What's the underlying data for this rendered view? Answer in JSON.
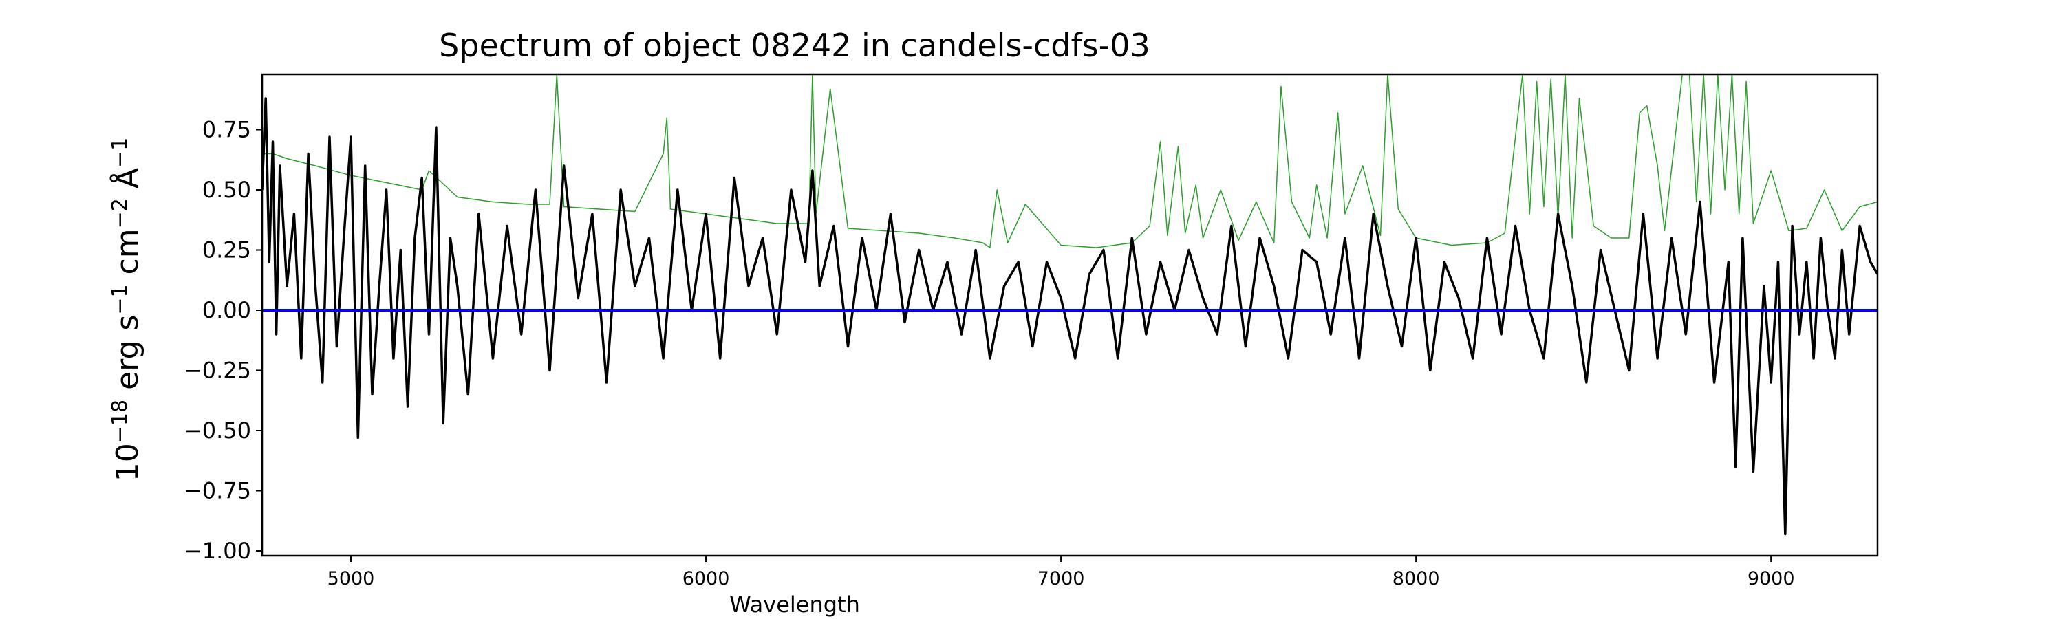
{
  "chart_data": {
    "type": "line",
    "title": "Spectrum of object 08242 in candels-cdfs-03",
    "xlabel": "Wavelength",
    "ylabel": {
      "base": "10",
      "exp": "−18",
      "unit_erg": "erg s",
      "exp_s": "−1",
      "unit_cm": "cm",
      "exp_cm": "−2",
      "unit_A": "Å",
      "exp_A": "−1"
    },
    "xlim": [
      4750,
      9300
    ],
    "ylim": [
      -1.02,
      0.98
    ],
    "x_ticks": [
      5000,
      6000,
      7000,
      8000,
      9000
    ],
    "x_tick_labels": [
      "5000",
      "6000",
      "7000",
      "8000",
      "9000"
    ],
    "y_ticks": [
      0.75,
      0.5,
      0.25,
      0.0,
      -0.25,
      -0.5,
      -0.75,
      -1.0
    ],
    "y_tick_labels": [
      "0.75",
      "0.50",
      "0.25",
      "0.00",
      "−0.25",
      "−0.50",
      "−0.75",
      "−1.00"
    ],
    "grid": false,
    "series": [
      {
        "color": "#2ca02c",
        "width": 1.5,
        "x": [
          4750,
          4780,
          4820,
          4900,
          5000,
          5100,
          5200,
          5220,
          5300,
          5400,
          5500,
          5560,
          5580,
          5600,
          5700,
          5800,
          5880,
          5890,
          5900,
          6000,
          6100,
          6200,
          6290,
          6300,
          6310,
          6350,
          6400,
          6500,
          6600,
          6700,
          6780,
          6800,
          6820,
          6850,
          6900,
          7000,
          7100,
          7200,
          7250,
          7280,
          7300,
          7330,
          7350,
          7380,
          7400,
          7450,
          7500,
          7550,
          7600,
          7620,
          7650,
          7700,
          7720,
          7750,
          7780,
          7800,
          7850,
          7900,
          7920,
          7950,
          8000,
          8100,
          8200,
          8250,
          8280,
          8300,
          8320,
          8340,
          8360,
          8380,
          8400,
          8420,
          8440,
          8460,
          8500,
          8550,
          8600,
          8630,
          8650,
          8680,
          8700,
          8750,
          8770,
          8790,
          8810,
          8830,
          8850,
          8870,
          8890,
          8910,
          8930,
          8950,
          9000,
          9050,
          9100,
          9150,
          9200,
          9250,
          9300
        ],
        "y": [
          0.65,
          0.65,
          0.63,
          0.6,
          0.56,
          0.53,
          0.5,
          0.58,
          0.47,
          0.45,
          0.44,
          0.44,
          0.98,
          0.43,
          0.42,
          0.41,
          0.65,
          0.8,
          0.42,
          0.4,
          0.38,
          0.36,
          0.36,
          0.98,
          0.4,
          0.92,
          0.34,
          0.33,
          0.32,
          0.3,
          0.28,
          0.26,
          0.5,
          0.28,
          0.44,
          0.27,
          0.26,
          0.28,
          0.35,
          0.7,
          0.31,
          0.68,
          0.32,
          0.52,
          0.3,
          0.5,
          0.29,
          0.45,
          0.28,
          0.93,
          0.45,
          0.3,
          0.52,
          0.3,
          0.82,
          0.4,
          0.6,
          0.31,
          0.98,
          0.42,
          0.3,
          0.27,
          0.28,
          0.32,
          0.72,
          0.98,
          0.4,
          0.95,
          0.43,
          0.96,
          0.38,
          0.98,
          0.3,
          0.88,
          0.35,
          0.3,
          0.3,
          0.82,
          0.85,
          0.6,
          0.33,
          0.98,
          0.98,
          0.45,
          0.98,
          0.4,
          0.98,
          0.5,
          0.98,
          0.4,
          0.95,
          0.36,
          0.58,
          0.33,
          0.34,
          0.5,
          0.33,
          0.43,
          0.45
        ]
      },
      {
        "color": "#000000",
        "width": 3.5,
        "x": [
          4750,
          4760,
          4770,
          4780,
          4790,
          4800,
          4820,
          4840,
          4860,
          4880,
          4900,
          4920,
          4940,
          4960,
          4980,
          5000,
          5020,
          5040,
          5060,
          5080,
          5100,
          5120,
          5140,
          5160,
          5180,
          5200,
          5220,
          5240,
          5260,
          5280,
          5300,
          5330,
          5360,
          5400,
          5440,
          5480,
          5520,
          5560,
          5600,
          5640,
          5680,
          5720,
          5760,
          5800,
          5840,
          5880,
          5920,
          5960,
          6000,
          6040,
          6080,
          6120,
          6160,
          6200,
          6240,
          6280,
          6300,
          6320,
          6360,
          6400,
          6440,
          6480,
          6520,
          6560,
          6600,
          6640,
          6680,
          6720,
          6760,
          6800,
          6840,
          6880,
          6920,
          6960,
          7000,
          7040,
          7080,
          7120,
          7160,
          7200,
          7240,
          7280,
          7320,
          7360,
          7400,
          7440,
          7480,
          7520,
          7560,
          7600,
          7640,
          7680,
          7720,
          7760,
          7800,
          7840,
          7880,
          7920,
          7960,
          8000,
          8040,
          8080,
          8120,
          8160,
          8200,
          8240,
          8280,
          8320,
          8360,
          8400,
          8440,
          8480,
          8520,
          8560,
          8600,
          8640,
          8680,
          8720,
          8760,
          8800,
          8840,
          8880,
          8900,
          8920,
          8950,
          8980,
          9000,
          9020,
          9040,
          9060,
          9080,
          9100,
          9120,
          9140,
          9160,
          9180,
          9200,
          9220,
          9250,
          9280,
          9300
        ],
        "y": [
          0.5,
          0.88,
          0.2,
          0.7,
          -0.1,
          0.6,
          0.1,
          0.4,
          -0.2,
          0.65,
          0.1,
          -0.3,
          0.72,
          -0.15,
          0.3,
          0.72,
          -0.53,
          0.6,
          -0.35,
          0.1,
          0.5,
          -0.2,
          0.25,
          -0.4,
          0.3,
          0.55,
          -0.1,
          0.76,
          -0.47,
          0.3,
          0.1,
          -0.35,
          0.4,
          -0.2,
          0.35,
          -0.1,
          0.5,
          -0.25,
          0.6,
          0.05,
          0.4,
          -0.3,
          0.5,
          0.1,
          0.3,
          -0.2,
          0.5,
          0.0,
          0.4,
          -0.2,
          0.55,
          0.1,
          0.3,
          -0.1,
          0.5,
          0.2,
          0.58,
          0.1,
          0.35,
          -0.15,
          0.3,
          0.0,
          0.4,
          -0.05,
          0.25,
          0.0,
          0.2,
          -0.1,
          0.25,
          -0.2,
          0.1,
          0.2,
          -0.15,
          0.2,
          0.05,
          -0.2,
          0.15,
          0.25,
          -0.2,
          0.3,
          -0.1,
          0.2,
          0.0,
          0.25,
          0.05,
          -0.1,
          0.35,
          -0.15,
          0.3,
          0.1,
          -0.2,
          0.25,
          0.2,
          -0.1,
          0.3,
          -0.2,
          0.4,
          0.1,
          -0.15,
          0.3,
          -0.25,
          0.2,
          0.05,
          -0.2,
          0.3,
          -0.1,
          0.35,
          0.0,
          -0.2,
          0.4,
          0.1,
          -0.3,
          0.25,
          0.0,
          -0.25,
          0.4,
          -0.2,
          0.3,
          -0.1,
          0.45,
          -0.3,
          0.2,
          -0.65,
          0.3,
          -0.67,
          0.1,
          -0.3,
          0.2,
          -0.93,
          0.35,
          -0.1,
          0.2,
          -0.2,
          0.3,
          0.0,
          -0.2,
          0.25,
          -0.1,
          0.35,
          0.2,
          0.15
        ]
      },
      {
        "color": "#0000ff",
        "width": 4,
        "x": [
          4750,
          9300
        ],
        "y": [
          0.0,
          0.0
        ]
      }
    ]
  }
}
